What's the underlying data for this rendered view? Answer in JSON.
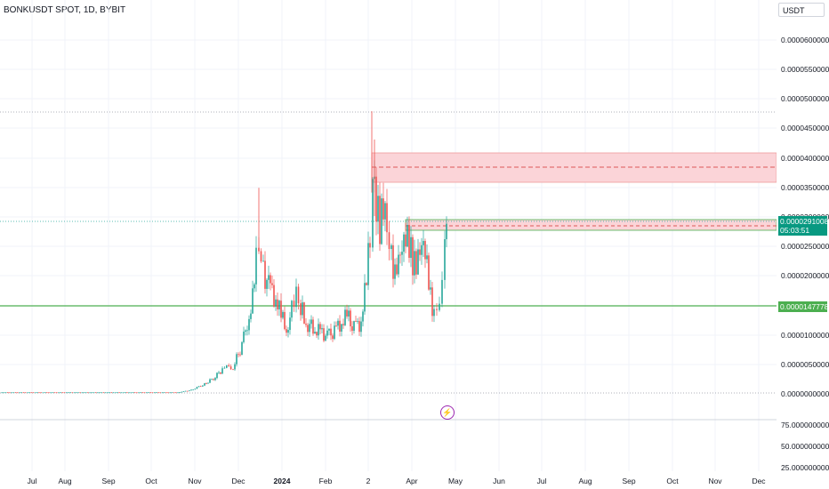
{
  "header": {
    "symbol_title": "BONKUSDT SPOT, 1D, BYBIT"
  },
  "currency_button": "USDT",
  "price_axis": {
    "labels": [
      "0.0000600000",
      "0.0000550000",
      "0.0000500000",
      "0.0000450000",
      "0.0000400000",
      "0.0000350000",
      "0.0000300000",
      "0.0000250000",
      "0.0000200000",
      "0.0000100000",
      "0.0000050000",
      "0.0000000000"
    ]
  },
  "current_price": {
    "value": "0.0000291008",
    "countdown": "05:03:51",
    "color": "#089981"
  },
  "support_price": {
    "value": "0.0000147778",
    "color": "#4caf50"
  },
  "indicator_axis": {
    "labels": [
      "75.0000000000",
      "50.0000000000",
      "25.0000000000"
    ]
  },
  "time_axis": {
    "labels": [
      "Jul",
      "Aug",
      "Sep",
      "Oct",
      "Nov",
      "Dec",
      "2024",
      "Feb",
      "2",
      "Apr",
      "May",
      "Jun",
      "Jul",
      "Aug",
      "Sep",
      "Oct",
      "Nov",
      "Dec"
    ]
  },
  "zones": {
    "resistance_color": "#f7c9cf",
    "support_color": "#c8e6c9"
  },
  "candle_colors": {
    "up": "#26a69a",
    "down": "#ef5350"
  },
  "chart_data": {
    "type": "candlestick",
    "x": [
      "2023-07",
      "2023-08",
      "2023-09",
      "2023-10",
      "2023-11-10",
      "2023-11-25",
      "2023-12-01",
      "2023-12-15",
      "2023-12-25",
      "2024-01-10",
      "2024-01-25",
      "2024-02-15",
      "2024-03-01",
      "2024-03-04",
      "2024-03-10",
      "2024-03-20",
      "2024-03-31",
      "2024-04-10",
      "2024-04-20",
      "2024-04-25"
    ],
    "close": [
      1e-07,
      1e-07,
      1e-07,
      1e-07,
      2.2e-06,
      6e-06,
      8e-06,
      2.7e-05,
      1.5e-05,
      1.2e-05,
      9e-06,
      1.4e-05,
      3.2e-05,
      3.7e-05,
      2.6e-05,
      2.8e-05,
      2.1e-05,
      2.4e-05,
      1.3e-05,
      2.91e-05
    ]
  }
}
